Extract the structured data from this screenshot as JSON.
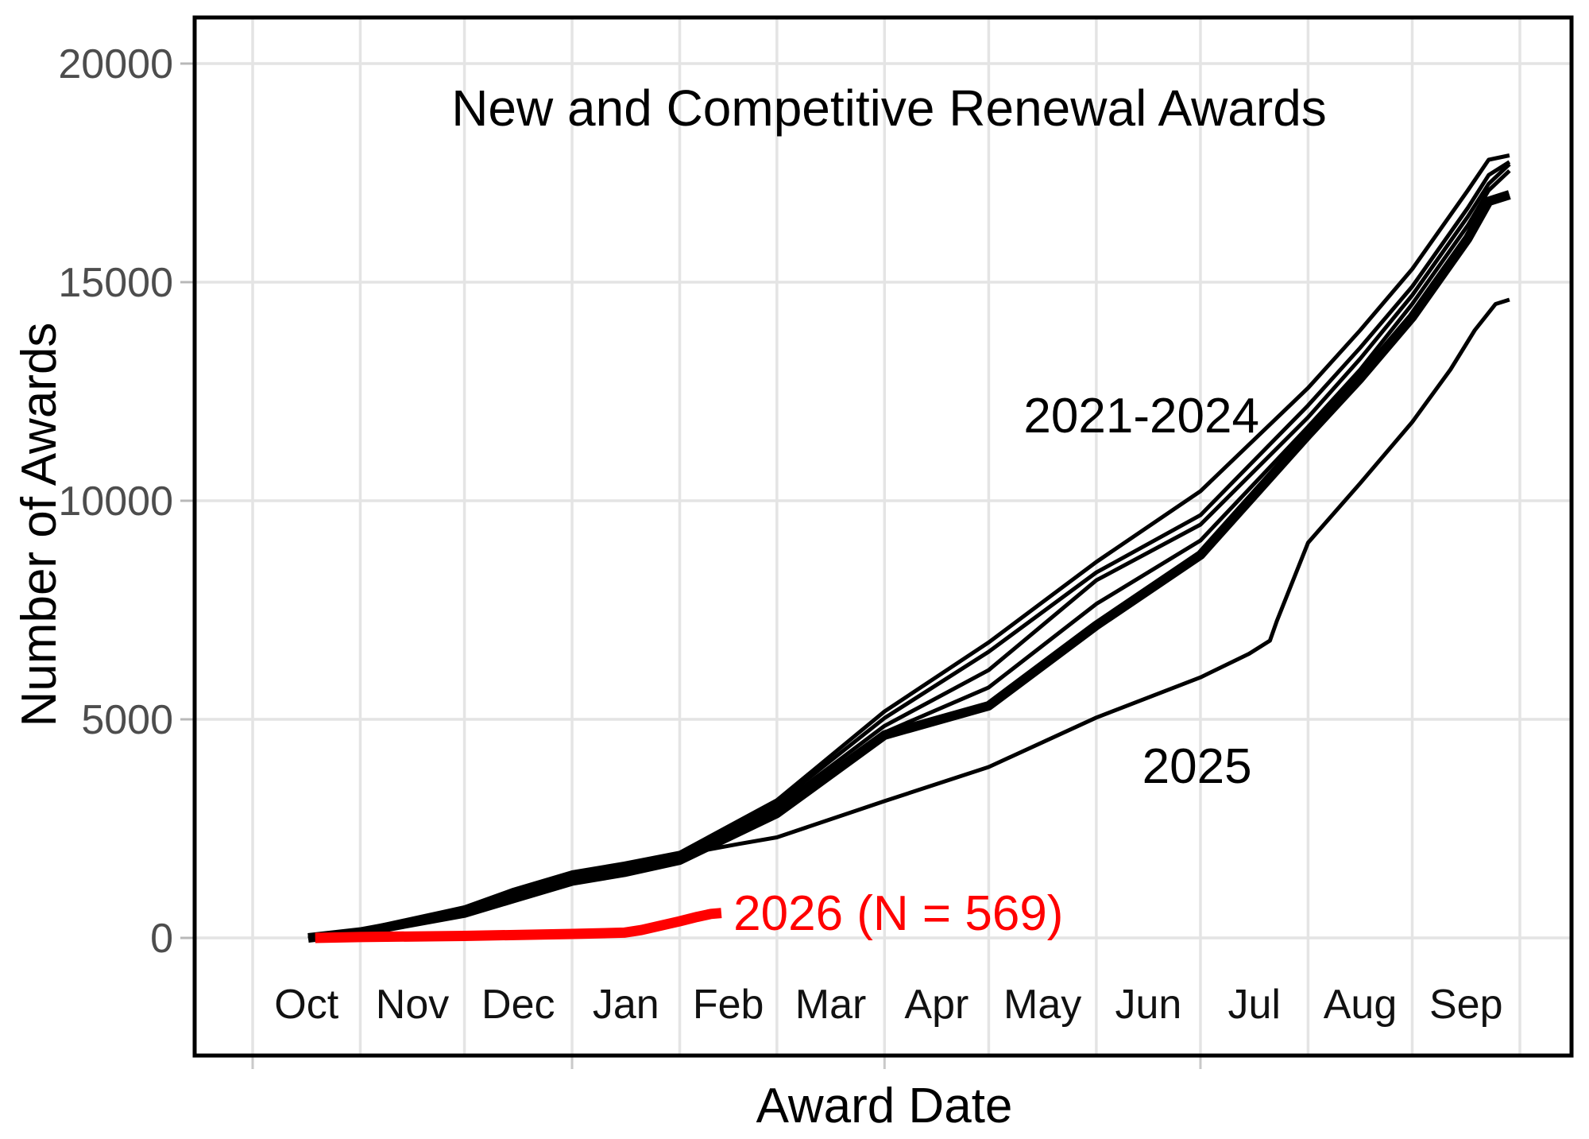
{
  "title": "New and Competitive Renewal Awards",
  "x_axis": {
    "label": "Award Date",
    "month_labels": [
      "Oct",
      "Nov",
      "Dec",
      "Jan",
      "Feb",
      "Mar",
      "Apr",
      "May",
      "Jun",
      "Jul",
      "Aug",
      "Sep"
    ]
  },
  "y_axis": {
    "label": "Number of Awards",
    "tick_labels": [
      "0",
      "5000",
      "10000",
      "15000",
      "20000"
    ],
    "tick_values": [
      0,
      5000,
      10000,
      15000,
      20000
    ]
  },
  "colors": {
    "black_series": "#000000",
    "highlight_red": "#FF0000",
    "gridline": "#e4e4e4",
    "axis_text_gray": "#4d4d4d"
  },
  "chart_data": {
    "type": "line",
    "title": "New and Competitive Renewal Awards",
    "xlabel": "Award Date",
    "ylabel": "Number of Awards",
    "x_unit": "days since Oct 1 (fiscal year)",
    "ylim": [
      0,
      20000
    ],
    "grid": "on",
    "legend": "none (direct line annotations)",
    "month_start_days": [
      0,
      31,
      61,
      92,
      123,
      151,
      182,
      212,
      243,
      273,
      304,
      334,
      365
    ],
    "quarter_tick_days": [
      0,
      92,
      182,
      273
    ],
    "series": [
      {
        "id": "fy-2021-2024-a",
        "name": "2021-2024 cohort line 1",
        "color": "#000000",
        "stroke_width": 5,
        "points": [
          [
            16,
            0
          ],
          [
            31,
            180
          ],
          [
            61,
            700
          ],
          [
            75,
            1100
          ],
          [
            92,
            1500
          ],
          [
            107,
            1700
          ],
          [
            123,
            1950
          ],
          [
            151,
            3150
          ],
          [
            182,
            5180
          ],
          [
            212,
            6760
          ],
          [
            243,
            8600
          ],
          [
            273,
            10220
          ],
          [
            304,
            12580
          ],
          [
            319,
            13900
          ],
          [
            334,
            15300
          ],
          [
            350,
            17100
          ],
          [
            356,
            17800
          ],
          [
            362,
            17900
          ]
        ]
      },
      {
        "id": "fy-2021-2024-b",
        "name": "2021-2024 cohort line 2",
        "color": "#000000",
        "stroke_width": 5,
        "points": [
          [
            16,
            0
          ],
          [
            31,
            165
          ],
          [
            61,
            660
          ],
          [
            75,
            1050
          ],
          [
            92,
            1450
          ],
          [
            107,
            1650
          ],
          [
            123,
            1900
          ],
          [
            151,
            3080
          ],
          [
            182,
            5030
          ],
          [
            212,
            6545
          ],
          [
            243,
            8360
          ],
          [
            273,
            9670
          ],
          [
            304,
            12180
          ],
          [
            319,
            13500
          ],
          [
            334,
            14900
          ],
          [
            350,
            16700
          ],
          [
            356,
            17450
          ],
          [
            362,
            17750
          ]
        ]
      },
      {
        "id": "fy-2021-2024-c",
        "name": "2021-2024 cohort line 3",
        "color": "#000000",
        "stroke_width": 5,
        "points": [
          [
            16,
            0
          ],
          [
            31,
            155
          ],
          [
            61,
            630
          ],
          [
            75,
            1000
          ],
          [
            92,
            1400
          ],
          [
            107,
            1600
          ],
          [
            123,
            1850
          ],
          [
            151,
            3000
          ],
          [
            182,
            4850
          ],
          [
            212,
            6125
          ],
          [
            243,
            8180
          ],
          [
            273,
            9455
          ],
          [
            304,
            11910
          ],
          [
            319,
            13250
          ],
          [
            334,
            14700
          ],
          [
            350,
            16500
          ],
          [
            356,
            17250
          ],
          [
            362,
            17700
          ]
        ]
      },
      {
        "id": "fy-2021-2024-d",
        "name": "2021-2024 cohort line 4",
        "color": "#000000",
        "stroke_width": 5,
        "points": [
          [
            16,
            0
          ],
          [
            31,
            145
          ],
          [
            61,
            600
          ],
          [
            75,
            950
          ],
          [
            92,
            1350
          ],
          [
            107,
            1550
          ],
          [
            123,
            1800
          ],
          [
            151,
            2920
          ],
          [
            182,
            4700
          ],
          [
            212,
            5730
          ],
          [
            243,
            7640
          ],
          [
            273,
            9090
          ],
          [
            304,
            11690
          ],
          [
            319,
            13000
          ],
          [
            334,
            14500
          ],
          [
            350,
            16300
          ],
          [
            356,
            17100
          ],
          [
            362,
            17550
          ]
        ]
      },
      {
        "id": "fy-2021-2024-thick",
        "name": "2021-2024 cohort thick line",
        "color": "#000000",
        "stroke_width": 12,
        "points": [
          [
            16,
            0
          ],
          [
            31,
            135
          ],
          [
            61,
            570
          ],
          [
            75,
            900
          ],
          [
            92,
            1300
          ],
          [
            107,
            1500
          ],
          [
            123,
            1780
          ],
          [
            151,
            2850
          ],
          [
            182,
            4640
          ],
          [
            212,
            5310
          ],
          [
            243,
            7150
          ],
          [
            273,
            8760
          ],
          [
            304,
            11510
          ],
          [
            319,
            12800
          ],
          [
            334,
            14200
          ],
          [
            350,
            16000
          ],
          [
            356,
            16850
          ],
          [
            362,
            17000
          ]
        ]
      },
      {
        "id": "fy-2025",
        "name": "2025",
        "color": "#000000",
        "stroke_width": 5,
        "points": [
          [
            16,
            0
          ],
          [
            31,
            150
          ],
          [
            61,
            600
          ],
          [
            75,
            950
          ],
          [
            92,
            1350
          ],
          [
            107,
            1550
          ],
          [
            123,
            1900
          ],
          [
            140,
            2150
          ],
          [
            151,
            2300
          ],
          [
            182,
            3130
          ],
          [
            212,
            3910
          ],
          [
            243,
            5040
          ],
          [
            273,
            5960
          ],
          [
            287,
            6500
          ],
          [
            293,
            6800
          ],
          [
            295,
            7250
          ],
          [
            304,
            9040
          ],
          [
            319,
            10400
          ],
          [
            334,
            11800
          ],
          [
            345,
            13000
          ],
          [
            352,
            13900
          ],
          [
            358,
            14500
          ],
          [
            362,
            14600
          ]
        ]
      },
      {
        "id": "fy-2026",
        "name": "2026 (N = 569)",
        "color": "#FF0000",
        "stroke_width": 13,
        "points": [
          [
            18,
            0
          ],
          [
            31,
            20
          ],
          [
            61,
            45
          ],
          [
            92,
            91
          ],
          [
            107,
            120
          ],
          [
            112,
            180
          ],
          [
            123,
            380
          ],
          [
            128,
            480
          ],
          [
            132,
            550
          ],
          [
            135,
            569
          ]
        ]
      }
    ],
    "annotations": [
      {
        "id": "label-2021-2024",
        "text": "2021-2024",
        "color": "#000000",
        "x_day": 256,
        "y_value": 11960
      },
      {
        "id": "label-2025",
        "text": "2025",
        "color": "#000000",
        "x_day": 272,
        "y_value": 3950
      },
      {
        "id": "label-2026",
        "text": "2026 (N = 569)",
        "color": "#FF0000",
        "x_day": 186,
        "y_value": 580
      }
    ]
  }
}
